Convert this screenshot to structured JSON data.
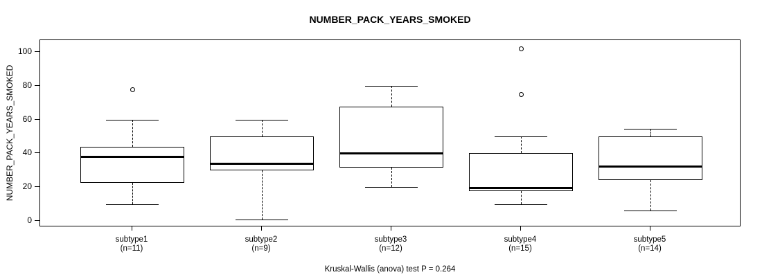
{
  "title": "NUMBER_PACK_YEARS_SMOKED",
  "chart_data": {
    "type": "boxplot",
    "title": "NUMBER_PACK_YEARS_SMOKED",
    "ylabel": "NUMBER_PACK_YEARS_SMOKED",
    "xlabel": "",
    "caption": "Kruskal-Wallis (anova) test P = 0.264",
    "ylim": [
      0,
      100
    ],
    "yticks": [
      0,
      20,
      40,
      60,
      80,
      100
    ],
    "grid": false,
    "legend": "none",
    "categories": [
      "subtype1",
      "subtype2",
      "subtype3",
      "subtype4",
      "subtype5"
    ],
    "sample_size_labels": [
      "(n=11)",
      "(n=9)",
      "(n=12)",
      "(n=15)",
      "(n=14)"
    ],
    "series": [
      {
        "name": "subtype1",
        "n": 11,
        "whisker_low": 10,
        "q1": 22.5,
        "median": 38,
        "q3": 44,
        "whisker_high": 60,
        "outliers": [
          78
        ]
      },
      {
        "name": "subtype2",
        "n": 9,
        "whisker_low": 1,
        "q1": 30,
        "median": 34,
        "q3": 50,
        "whisker_high": 60,
        "outliers": []
      },
      {
        "name": "subtype3",
        "n": 12,
        "whisker_low": 20,
        "q1": 31.5,
        "median": 40,
        "q3": 67.5,
        "whisker_high": 80,
        "outliers": []
      },
      {
        "name": "subtype4",
        "n": 15,
        "whisker_low": 10,
        "q1": 17.5,
        "median": 19.5,
        "q3": 40,
        "whisker_high": 50,
        "outliers": [
          75,
          102
        ]
      },
      {
        "name": "subtype5",
        "n": 14,
        "whisker_low": 6,
        "q1": 24,
        "median": 32.5,
        "q3": 50,
        "whisker_high": 54.5,
        "outliers": []
      }
    ],
    "colors": {
      "line": "#000000",
      "fill": "#ffffff",
      "background": "#ffffff"
    }
  }
}
